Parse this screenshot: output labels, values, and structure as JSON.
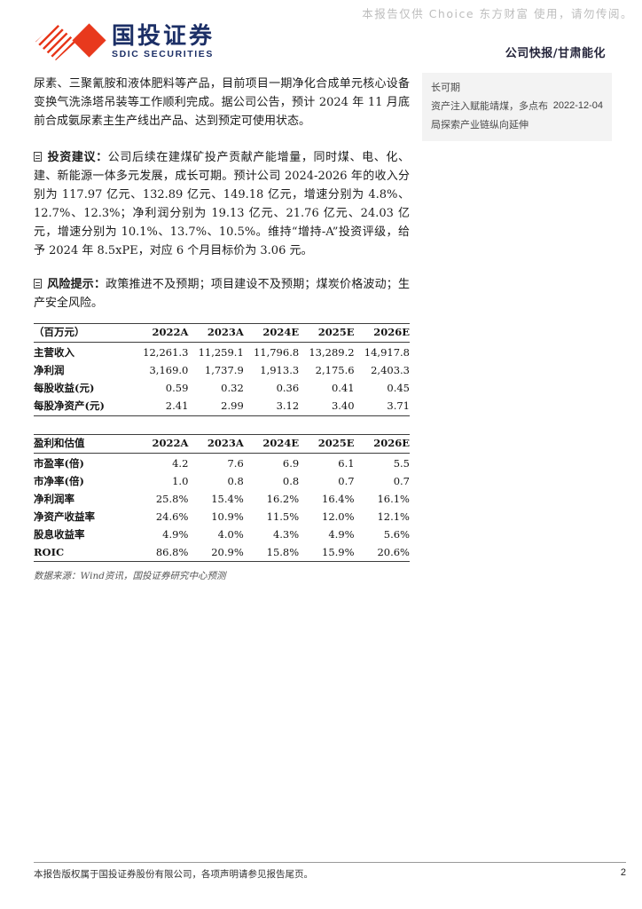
{
  "watermark": "本报告仅供 Choice 东方财富 使用，请勿传阅。",
  "header": {
    "logo_cn": "国投证券",
    "logo_en": "SDIC SECURITIES",
    "report_type": "公司快报/甘肃能化"
  },
  "related_report": {
    "line1": "长可期",
    "line2": "资产注入赋能靖煤，多点布",
    "line3": "局探索产业链纵向延伸",
    "date": "2022-12-04"
  },
  "paragraphs": {
    "p1": "尿素、三聚氰胺和液体肥料等产品，目前项目一期净化合成单元核心设备变换气洗涤塔吊装等工作顺利完成。据公司公告，预计 2024 年 11 月底前合成氨尿素主生产线出产品、达到预定可使用状态。",
    "p2_label": "投资建议：",
    "p2_text": "公司后续在建煤矿投产贡献产能增量，同时煤、电、化、建、新能源一体多元发展，成长可期。预计公司 2024-2026 年的收入分别为 117.97 亿元、132.89 亿元、149.18 亿元，增速分别为 4.8%、12.7%、12.3%；净利润分别为 19.13 亿元、21.76 亿元、24.03 亿元，增速分别为 10.1%、13.7%、10.5%。维持“增持-A”投资评级，给予 2024 年 8.5xPE，对应 6 个月目标价为 3.06 元。",
    "p3_label": "风险提示：",
    "p3_text": "政策推进不及预期；项目建设不及预期；煤炭价格波动；生产安全风险。"
  },
  "table1": {
    "headers": [
      "（百万元）",
      "2022A",
      "2023A",
      "2024E",
      "2025E",
      "2026E"
    ],
    "rows": [
      [
        "主营收入",
        "12,261.3",
        "11,259.1",
        "11,796.8",
        "13,289.2",
        "14,917.8"
      ],
      [
        "净利润",
        "3,169.0",
        "1,737.9",
        "1,913.3",
        "2,175.6",
        "2,403.3"
      ],
      [
        "每股收益(元)",
        "0.59",
        "0.32",
        "0.36",
        "0.41",
        "0.45"
      ],
      [
        "每股净资产(元)",
        "2.41",
        "2.99",
        "3.12",
        "3.40",
        "3.71"
      ]
    ]
  },
  "table2": {
    "headers": [
      "盈利和估值",
      "2022A",
      "2023A",
      "2024E",
      "2025E",
      "2026E"
    ],
    "rows": [
      [
        "市盈率(倍)",
        "4.2",
        "7.6",
        "6.9",
        "6.1",
        "5.5"
      ],
      [
        "市净率(倍)",
        "1.0",
        "0.8",
        "0.8",
        "0.7",
        "0.7"
      ],
      [
        "净利润率",
        "25.8%",
        "15.4%",
        "16.2%",
        "16.4%",
        "16.1%"
      ],
      [
        "净资产收益率",
        "24.6%",
        "10.9%",
        "11.5%",
        "12.0%",
        "12.1%"
      ],
      [
        "股息收益率",
        "4.9%",
        "4.0%",
        "4.3%",
        "4.9%",
        "5.6%"
      ],
      [
        "ROIC",
        "86.8%",
        "20.9%",
        "15.8%",
        "15.9%",
        "20.6%"
      ]
    ]
  },
  "source_note": "数据来源：Wind资讯，国投证券研究中心预测",
  "footer": {
    "copyright": "本报告版权属于国投证券股份有限公司，各项声明请参见报告尾页。",
    "page": "2"
  },
  "colors": {
    "brand_red": "#e8391d",
    "brand_navy": "#1c2f66",
    "related_box_bg": "#f3f3f3",
    "watermark_gray": "#bdbdbd"
  }
}
